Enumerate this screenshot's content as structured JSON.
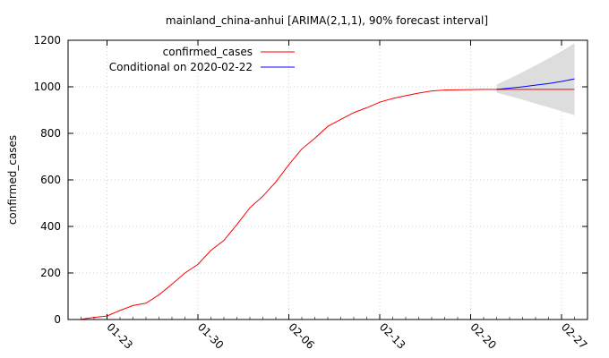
{
  "chart_data": {
    "type": "line",
    "title": "mainland_china-anhui [ARIMA(2,1,1), 90% forecast interval]",
    "xlabel": "",
    "ylabel": "confirmed_cases",
    "ylim": [
      0,
      1200
    ],
    "xlim": [
      "2020-01-20",
      "2020-02-29"
    ],
    "yticks": [
      0,
      200,
      400,
      600,
      800,
      1000,
      1200
    ],
    "xticks": [
      {
        "date": "2020-01-23",
        "label": "01-23"
      },
      {
        "date": "2020-01-30",
        "label": "01-30"
      },
      {
        "date": "2020-02-06",
        "label": "02-06"
      },
      {
        "date": "2020-02-13",
        "label": "02-13"
      },
      {
        "date": "2020-02-20",
        "label": "02-20"
      },
      {
        "date": "2020-02-27",
        "label": "02-27"
      }
    ],
    "grid": true,
    "legend_position": "top-left",
    "series": [
      {
        "name": "confirmed_cases",
        "color": "#ff0000",
        "x": [
          "2020-01-21",
          "2020-01-22",
          "2020-01-23",
          "2020-01-24",
          "2020-01-25",
          "2020-01-26",
          "2020-01-27",
          "2020-01-28",
          "2020-01-29",
          "2020-01-30",
          "2020-01-31",
          "2020-02-01",
          "2020-02-02",
          "2020-02-03",
          "2020-02-04",
          "2020-02-05",
          "2020-02-06",
          "2020-02-07",
          "2020-02-08",
          "2020-02-09",
          "2020-02-10",
          "2020-02-11",
          "2020-02-12",
          "2020-02-13",
          "2020-02-14",
          "2020-02-15",
          "2020-02-16",
          "2020-02-17",
          "2020-02-18",
          "2020-02-19",
          "2020-02-20",
          "2020-02-21",
          "2020-02-22",
          "2020-02-23",
          "2020-02-24",
          "2020-02-25",
          "2020-02-26",
          "2020-02-27",
          "2020-02-28"
        ],
        "values": [
          1,
          9,
          15,
          39,
          60,
          70,
          106,
          152,
          200,
          237,
          297,
          340,
          408,
          480,
          530,
          591,
          665,
          733,
          779,
          830,
          860,
          889,
          910,
          934,
          950,
          962,
          973,
          982,
          986,
          987,
          988,
          989,
          989,
          989,
          989,
          989,
          989,
          989,
          989
        ]
      },
      {
        "name": "Conditional on 2020-02-22",
        "color": "#0000ff",
        "x": [
          "2020-02-22",
          "2020-02-23",
          "2020-02-24",
          "2020-02-25",
          "2020-02-26",
          "2020-02-27",
          "2020-02-28"
        ],
        "values": [
          989,
          994,
          1000,
          1007,
          1014,
          1023,
          1034
        ]
      }
    ],
    "forecast_interval": {
      "color": "#dddddd",
      "x": [
        "2020-02-22",
        "2020-02-23",
        "2020-02-24",
        "2020-02-25",
        "2020-02-26",
        "2020-02-27",
        "2020-02-28"
      ],
      "lower": [
        975,
        960,
        945,
        928,
        912,
        895,
        878
      ],
      "upper": [
        1010,
        1035,
        1063,
        1092,
        1122,
        1153,
        1187
      ]
    }
  }
}
